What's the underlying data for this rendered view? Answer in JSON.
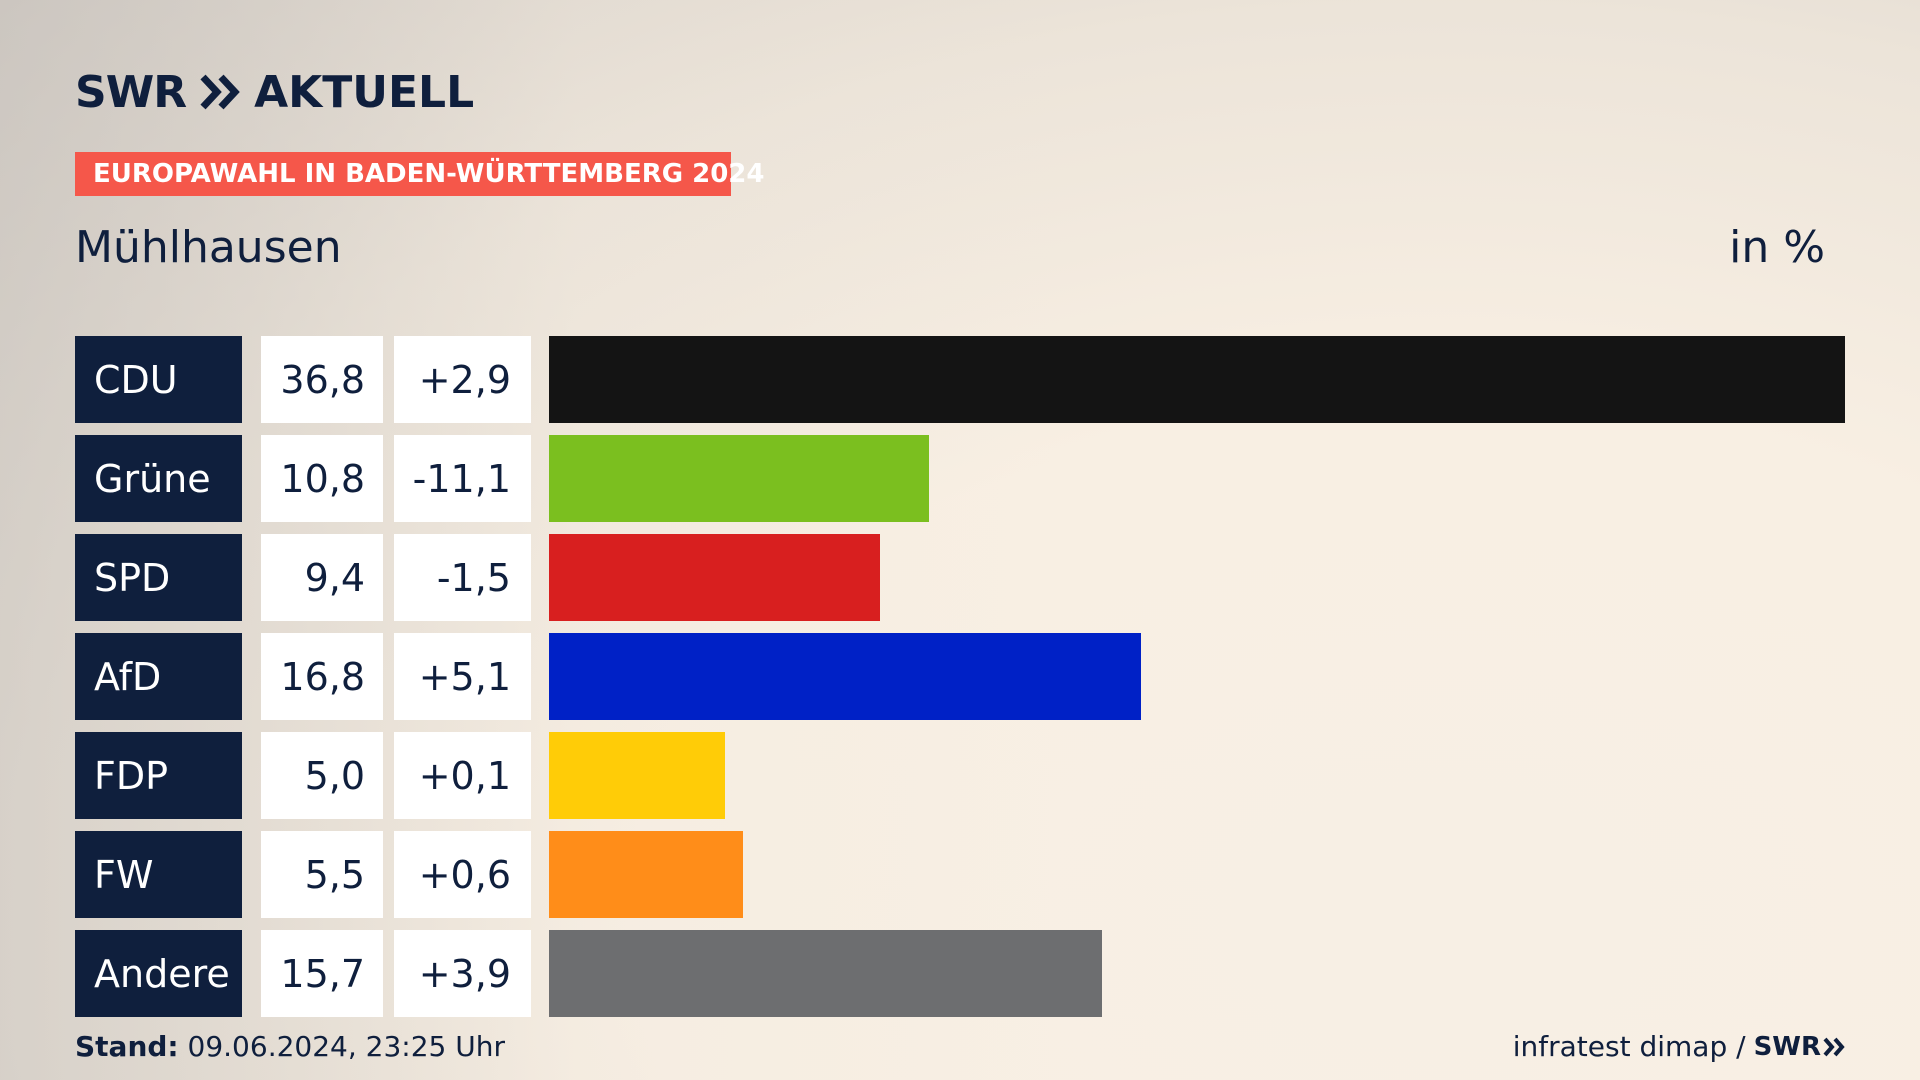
{
  "brand": {
    "swr": "SWR",
    "aktuell": "AKTUELL"
  },
  "banner": "EUROPAWAHL IN BADEN-WÜRTTEMBERG 2024",
  "region": "Mühlhausen",
  "unit": "in %",
  "chart_data": {
    "type": "bar",
    "orientation": "horizontal",
    "categories": [
      "CDU",
      "Grüne",
      "SPD",
      "AfD",
      "FDP",
      "FW",
      "Andere"
    ],
    "values": [
      36.8,
      10.8,
      9.4,
      16.8,
      5.0,
      5.5,
      15.7
    ],
    "value_labels": [
      "36,8",
      "10,8",
      "9,4",
      "16,8",
      "5,0",
      "5,5",
      "15,7"
    ],
    "changes": [
      2.9,
      -11.1,
      -1.5,
      5.1,
      0.1,
      0.6,
      3.9
    ],
    "change_labels": [
      "+2,9",
      "-11,1",
      "-1,5",
      "+5,1",
      "+0,1",
      "+0,6",
      "+3,9"
    ],
    "colors": [
      "#141414",
      "#7bbf1f",
      "#d81f1f",
      "#0021c6",
      "#ffcc07",
      "#ff8d19",
      "#6d6e70"
    ],
    "xlim": [
      0,
      36.8
    ],
    "grid": false,
    "legend": "none"
  },
  "footer": {
    "stand_label": "Stand:",
    "stand_value": "09.06.2024, 23:25 Uhr",
    "source": "infratest dimap /",
    "source_brand": "SWR"
  }
}
